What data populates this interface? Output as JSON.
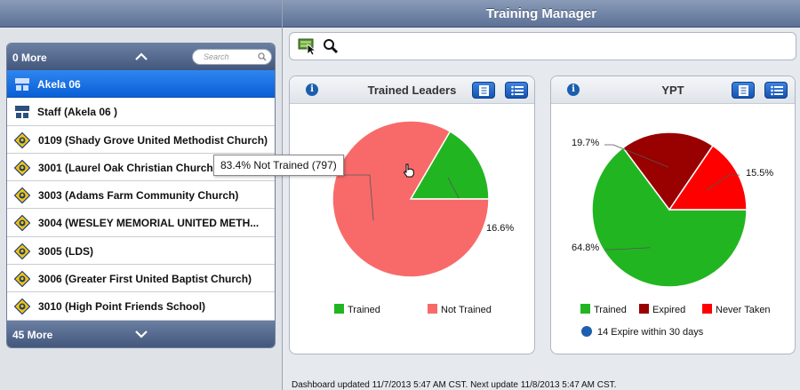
{
  "app": {
    "title": "Training Manager"
  },
  "sidebar": {
    "top_more": "0 More",
    "bottom_more": "45 More",
    "search_placeholder": "Search",
    "items": [
      {
        "label": "Akela 06",
        "type": "group",
        "selected": true
      },
      {
        "label": "Staff (Akela 06 )",
        "type": "group",
        "selected": false
      },
      {
        "label": "0109 (Shady Grove United Methodist Church)",
        "type": "unit",
        "selected": false
      },
      {
        "label": "3001 (Laurel Oak Christian Church)",
        "type": "unit",
        "selected": false
      },
      {
        "label": "3003 (Adams Farm Community Church)",
        "type": "unit",
        "selected": false
      },
      {
        "label": "3004 (WESLEY MEMORIAL UNITED METH...",
        "type": "unit",
        "selected": false
      },
      {
        "label": "3005 (LDS)",
        "type": "unit",
        "selected": false
      },
      {
        "label": "3006 (Greater First United Baptist Church)",
        "type": "unit",
        "selected": false
      },
      {
        "label": "3010 (High Point Friends School)",
        "type": "unit",
        "selected": false
      }
    ]
  },
  "toolbar": {
    "icons": [
      "select-unit-icon",
      "search-icon"
    ]
  },
  "tooltip": {
    "text": "83.4% Not Trained (797)"
  },
  "panels": {
    "trained_leaders": {
      "title": "Trained Leaders",
      "labels": {
        "trained": "16.6%"
      }
    },
    "ypt": {
      "title": "YPT",
      "labels": {
        "expired": "19.7%",
        "never_taken": "15.5%",
        "trained": "64.8%"
      },
      "note": "14 Expire within 30 days"
    }
  },
  "chart_data": [
    {
      "type": "pie",
      "title": "Trained Leaders",
      "categories": [
        "Trained",
        "Not Trained"
      ],
      "values": [
        16.6,
        83.4
      ],
      "colors": [
        "#22b522",
        "#f86a6a"
      ],
      "legend": "bottom"
    },
    {
      "type": "pie",
      "title": "YPT",
      "categories": [
        "Trained",
        "Expired",
        "Never Taken"
      ],
      "values": [
        64.8,
        19.7,
        15.5
      ],
      "colors": [
        "#22b522",
        "#990000",
        "#ff0000"
      ],
      "legend": "bottom"
    }
  ],
  "footer": {
    "text": "Dashboard updated 11/7/2013 5:47 AM CST.  Next update 11/8/2013 5:47 AM CST."
  }
}
